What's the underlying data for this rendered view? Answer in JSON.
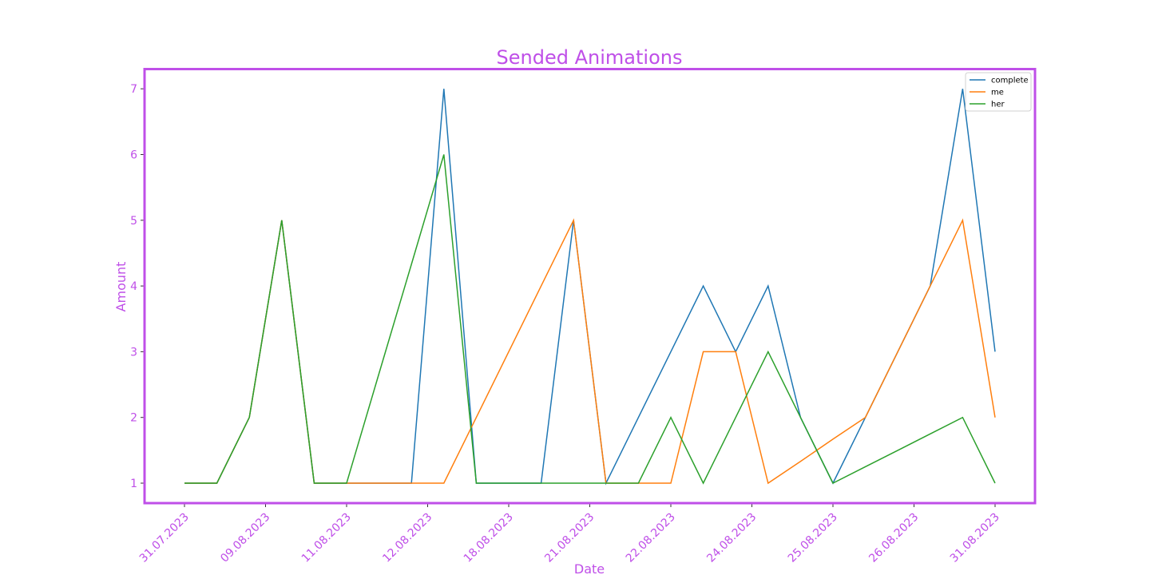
{
  "chart_data": {
    "type": "line",
    "title": "Sended Animations",
    "xlabel": "Date",
    "ylabel": "Amount",
    "x_tick_labels": [
      "31.07.2023",
      "09.08.2023",
      "11.08.2023",
      "12.08.2023",
      "18.08.2023",
      "21.08.2023",
      "22.08.2023",
      "24.08.2023",
      "25.08.2023",
      "26.08.2023",
      "31.08.2023"
    ],
    "y_ticks": [
      1,
      2,
      3,
      4,
      5,
      6,
      7
    ],
    "ylim": [
      0.7,
      7.3
    ],
    "grid": false,
    "legend_position": "top-right",
    "accent_color": "#bf4fe8",
    "series": [
      {
        "name": "complete",
        "color": "#1f77b4",
        "values": [
          1,
          1,
          2,
          5,
          1,
          1,
          1,
          1,
          7,
          1,
          1,
          1,
          5,
          1,
          2,
          3,
          4,
          3,
          4,
          2,
          1,
          2,
          3,
          4,
          7,
          3
        ]
      },
      {
        "name": "me",
        "color": "#ff7f0e",
        "values": [
          1,
          1,
          2,
          5,
          1,
          1,
          1,
          1,
          1,
          2,
          3,
          4,
          5,
          1,
          1,
          1,
          3,
          3,
          1,
          1.33,
          1.67,
          2,
          3,
          4,
          5,
          2
        ]
      },
      {
        "name": "her",
        "color": "#2ca02c",
        "values": [
          1,
          1,
          2,
          5,
          1,
          1,
          2.67,
          4.33,
          6,
          1,
          1,
          1,
          1,
          1,
          1,
          2,
          1,
          2,
          3,
          2,
          1,
          1.25,
          1.5,
          1.75,
          2,
          1
        ]
      }
    ]
  }
}
